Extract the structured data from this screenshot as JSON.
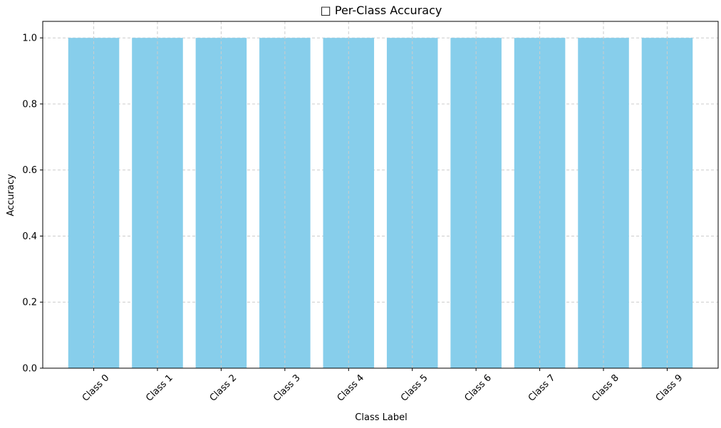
{
  "chart_data": {
    "type": "bar",
    "title": "□ Per-Class Accuracy",
    "xlabel": "Class Label",
    "ylabel": "Accuracy",
    "categories": [
      "Class 0",
      "Class 1",
      "Class 2",
      "Class 3",
      "Class 4",
      "Class 5",
      "Class 6",
      "Class 7",
      "Class 8",
      "Class 9"
    ],
    "values": [
      1.0,
      1.0,
      1.0,
      1.0,
      1.0,
      1.0,
      1.0,
      1.0,
      1.0,
      1.0
    ],
    "ylim": [
      0,
      1.05
    ],
    "yticks": [
      "0.0",
      "0.2",
      "0.4",
      "0.6",
      "0.8",
      "1.0"
    ],
    "grid": true,
    "bar_color": "#87CEEB",
    "grid_color": "#cccccc"
  }
}
